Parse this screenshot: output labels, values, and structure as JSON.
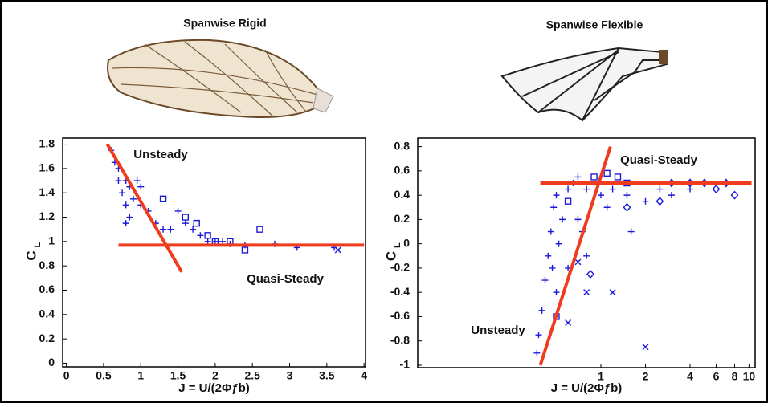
{
  "chart_data": [
    {
      "type": "scatter",
      "title": "Spanwise Rigid",
      "xlabel": "J = U/(2Φƒb)",
      "ylabel": "C",
      "ylabel_subscript": "L",
      "xlim": [
        -0.05,
        4.02
      ],
      "ylim": [
        -0.03,
        1.85
      ],
      "xticks": [
        0,
        0.5,
        1,
        1.5,
        2,
        2.5,
        3,
        3.5,
        4
      ],
      "yticks": [
        0,
        0.2,
        0.4,
        0.6,
        0.8,
        1,
        1.2,
        1.4,
        1.6,
        1.8
      ],
      "annotations": [
        "Unsteady",
        "Quasi-Steady"
      ],
      "series": [
        {
          "marker": "plus",
          "color": "#1a1ad8",
          "x": [
            0.6,
            0.65,
            0.7,
            0.7,
            0.75,
            0.8,
            0.8,
            0.85,
            0.9,
            0.95,
            1.0,
            0.8,
            0.85,
            1.0,
            1.1,
            1.2,
            1.3,
            1.4,
            1.5,
            1.6,
            1.7,
            1.8,
            1.9,
            2.0,
            2.1,
            2.2,
            2.4,
            2.8,
            3.1,
            3.6
          ],
          "y": [
            1.75,
            1.65,
            1.6,
            1.5,
            1.4,
            1.5,
            1.3,
            1.45,
            1.35,
            1.5,
            1.45,
            1.15,
            1.2,
            1.3,
            1.25,
            1.15,
            1.1,
            1.1,
            1.25,
            1.15,
            1.1,
            1.05,
            1.0,
            1.0,
            1.0,
            0.98,
            0.97,
            0.98,
            0.95,
            0.95
          ]
        },
        {
          "marker": "square",
          "color": "#1a1ad8",
          "x": [
            1.3,
            1.6,
            1.75,
            1.9,
            2.0,
            2.2,
            2.4,
            2.6
          ],
          "y": [
            1.35,
            1.2,
            1.15,
            1.05,
            1.0,
            1.0,
            0.93,
            1.1
          ]
        },
        {
          "marker": "cross",
          "color": "#1a1ad8",
          "x": [
            3.65
          ],
          "y": [
            0.93
          ]
        }
      ],
      "fit_lines": [
        {
          "color": "#f03c1e",
          "x": [
            0.55,
            1.55
          ],
          "y": [
            1.8,
            0.75
          ]
        },
        {
          "color": "#f03c1e",
          "x": [
            0.7,
            4.0
          ],
          "y": [
            0.97,
            0.97
          ]
        }
      ]
    },
    {
      "type": "scatter",
      "title": "Spanwise Flexible",
      "xlabel": "J = U/(2Φƒb)",
      "ylabel": "C",
      "ylabel_subscript": "L",
      "log_x": true,
      "xlim": [
        0.058,
        11
      ],
      "ylim": [
        -1.02,
        0.87
      ],
      "xticks": [
        1,
        2,
        4,
        6,
        8,
        10
      ],
      "yticks": [
        -1,
        -0.8,
        -0.6,
        -0.4,
        -0.2,
        0,
        0.2,
        0.4,
        0.6,
        0.8
      ],
      "annotations": [
        "Quasi-Steady",
        "Unsteady"
      ],
      "series": [
        {
          "marker": "plus",
          "color": "#1a1ad8",
          "x": [
            0.37,
            0.38,
            0.4,
            0.42,
            0.44,
            0.46,
            0.48,
            0.5,
            0.52,
            0.55,
            0.6,
            0.65,
            0.7,
            0.8,
            0.9,
            1.0,
            1.2,
            1.5,
            2.0,
            2.5,
            3,
            4,
            1.6,
            1.1,
            0.7,
            0.6,
            0.5,
            0.47,
            0.8,
            0.75
          ],
          "y": [
            -0.9,
            -0.75,
            -0.55,
            -0.3,
            -0.1,
            0.1,
            0.3,
            0.4,
            0.0,
            0.2,
            0.45,
            0.5,
            0.55,
            0.45,
            0.5,
            0.4,
            0.45,
            0.4,
            0.35,
            0.45,
            0.4,
            0.45,
            0.1,
            0.3,
            0.2,
            -0.2,
            -0.4,
            -0.2,
            -0.1,
            0.1
          ]
        },
        {
          "marker": "square",
          "color": "#1a1ad8",
          "x": [
            0.5,
            0.6,
            0.9,
            1.1,
            1.3,
            1.5
          ],
          "y": [
            -0.6,
            0.35,
            0.55,
            0.58,
            0.55,
            0.5
          ]
        },
        {
          "marker": "cross",
          "color": "#1a1ad8",
          "x": [
            0.6,
            0.8,
            1.2,
            2.0,
            0.7
          ],
          "y": [
            -0.65,
            -0.4,
            -0.4,
            -0.85,
            -0.15
          ]
        },
        {
          "marker": "diamond",
          "color": "#1a1ad8",
          "x": [
            3,
            4,
            5,
            6,
            7,
            8,
            0.85,
            1.5,
            2.5
          ],
          "y": [
            0.5,
            0.5,
            0.5,
            0.45,
            0.5,
            0.4,
            -0.25,
            0.3,
            0.35
          ]
        }
      ],
      "fit_lines": [
        {
          "color": "#f03c1e",
          "x": [
            0.39,
            1.16
          ],
          "y": [
            -1.0,
            0.8
          ]
        },
        {
          "color": "#f03c1e",
          "x": [
            0.39,
            10.4
          ],
          "y": [
            0.5,
            0.5
          ]
        }
      ]
    }
  ]
}
